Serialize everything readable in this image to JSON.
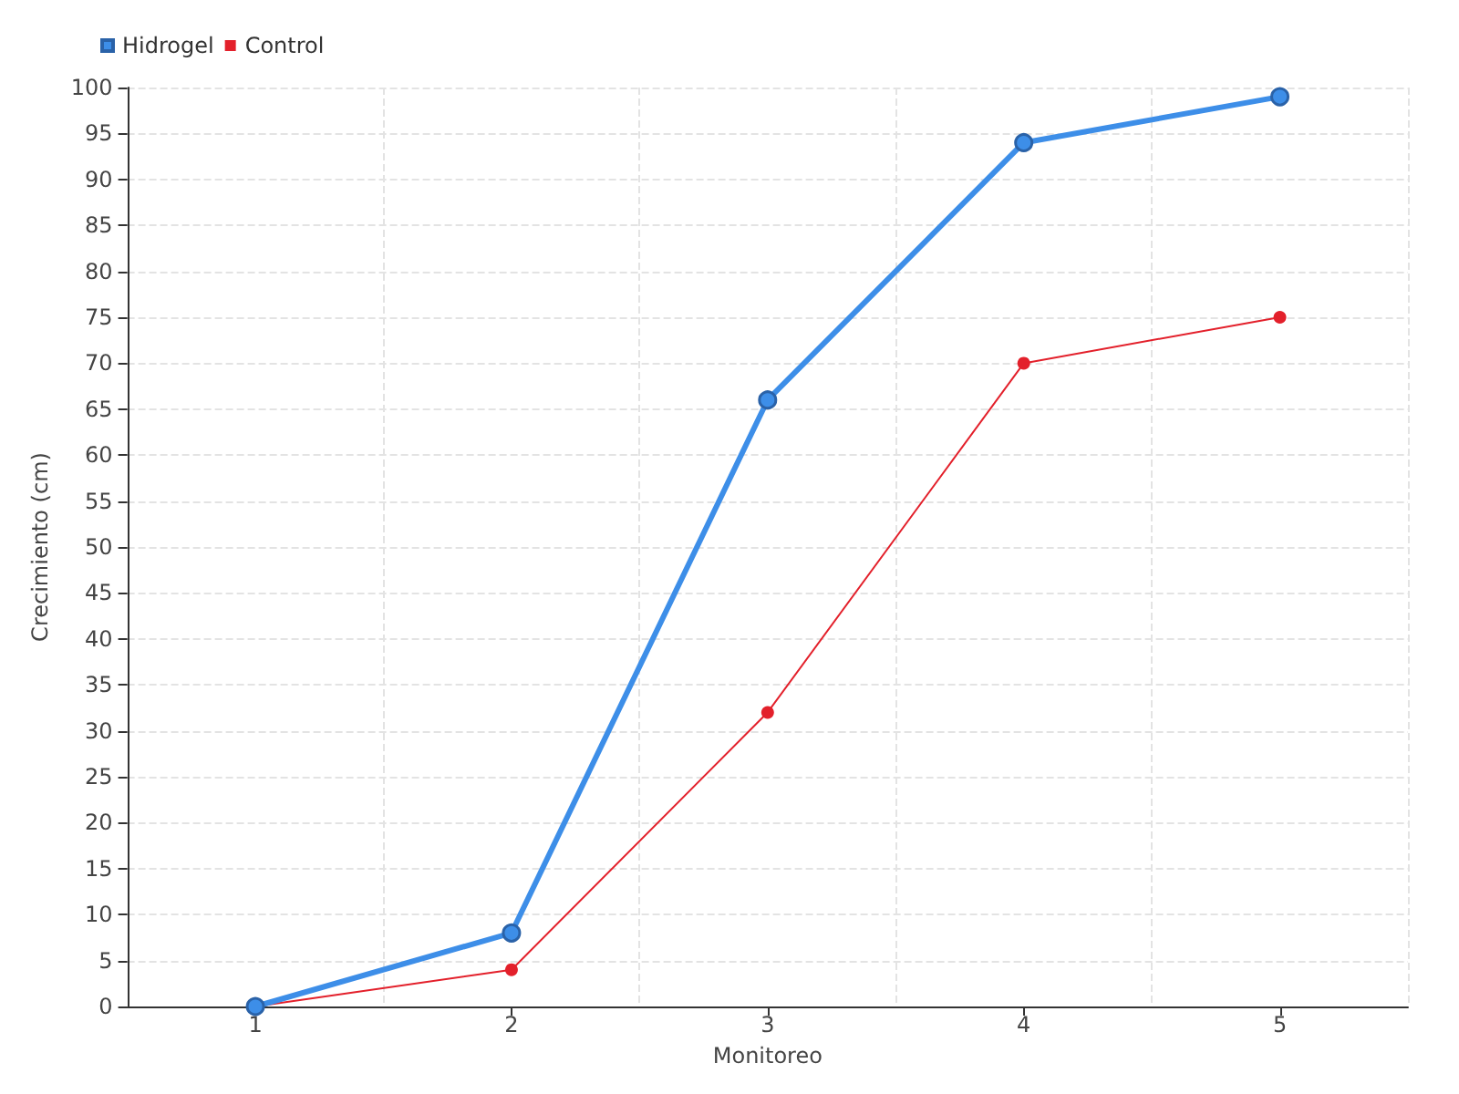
{
  "chart_data": {
    "type": "line",
    "xlabel": "Monitoreo",
    "ylabel": "Crecimiento (cm)",
    "categories": [
      "1",
      "2",
      "3",
      "4",
      "5"
    ],
    "series": [
      {
        "name": "Hidrogel",
        "color": "#3d8ee8",
        "values": [
          0,
          8,
          66,
          94,
          99
        ]
      },
      {
        "name": "Control",
        "color": "#e3202b",
        "values": [
          0,
          4,
          32,
          70,
          75
        ]
      }
    ],
    "ylim": [
      0,
      100
    ],
    "yticks": [
      0,
      5,
      10,
      15,
      20,
      25,
      30,
      35,
      40,
      45,
      50,
      55,
      60,
      65,
      70,
      75,
      80,
      85,
      90,
      95,
      100
    ],
    "grid": true,
    "legend": "top left",
    "marker": "circle",
    "line_style": "solid"
  }
}
